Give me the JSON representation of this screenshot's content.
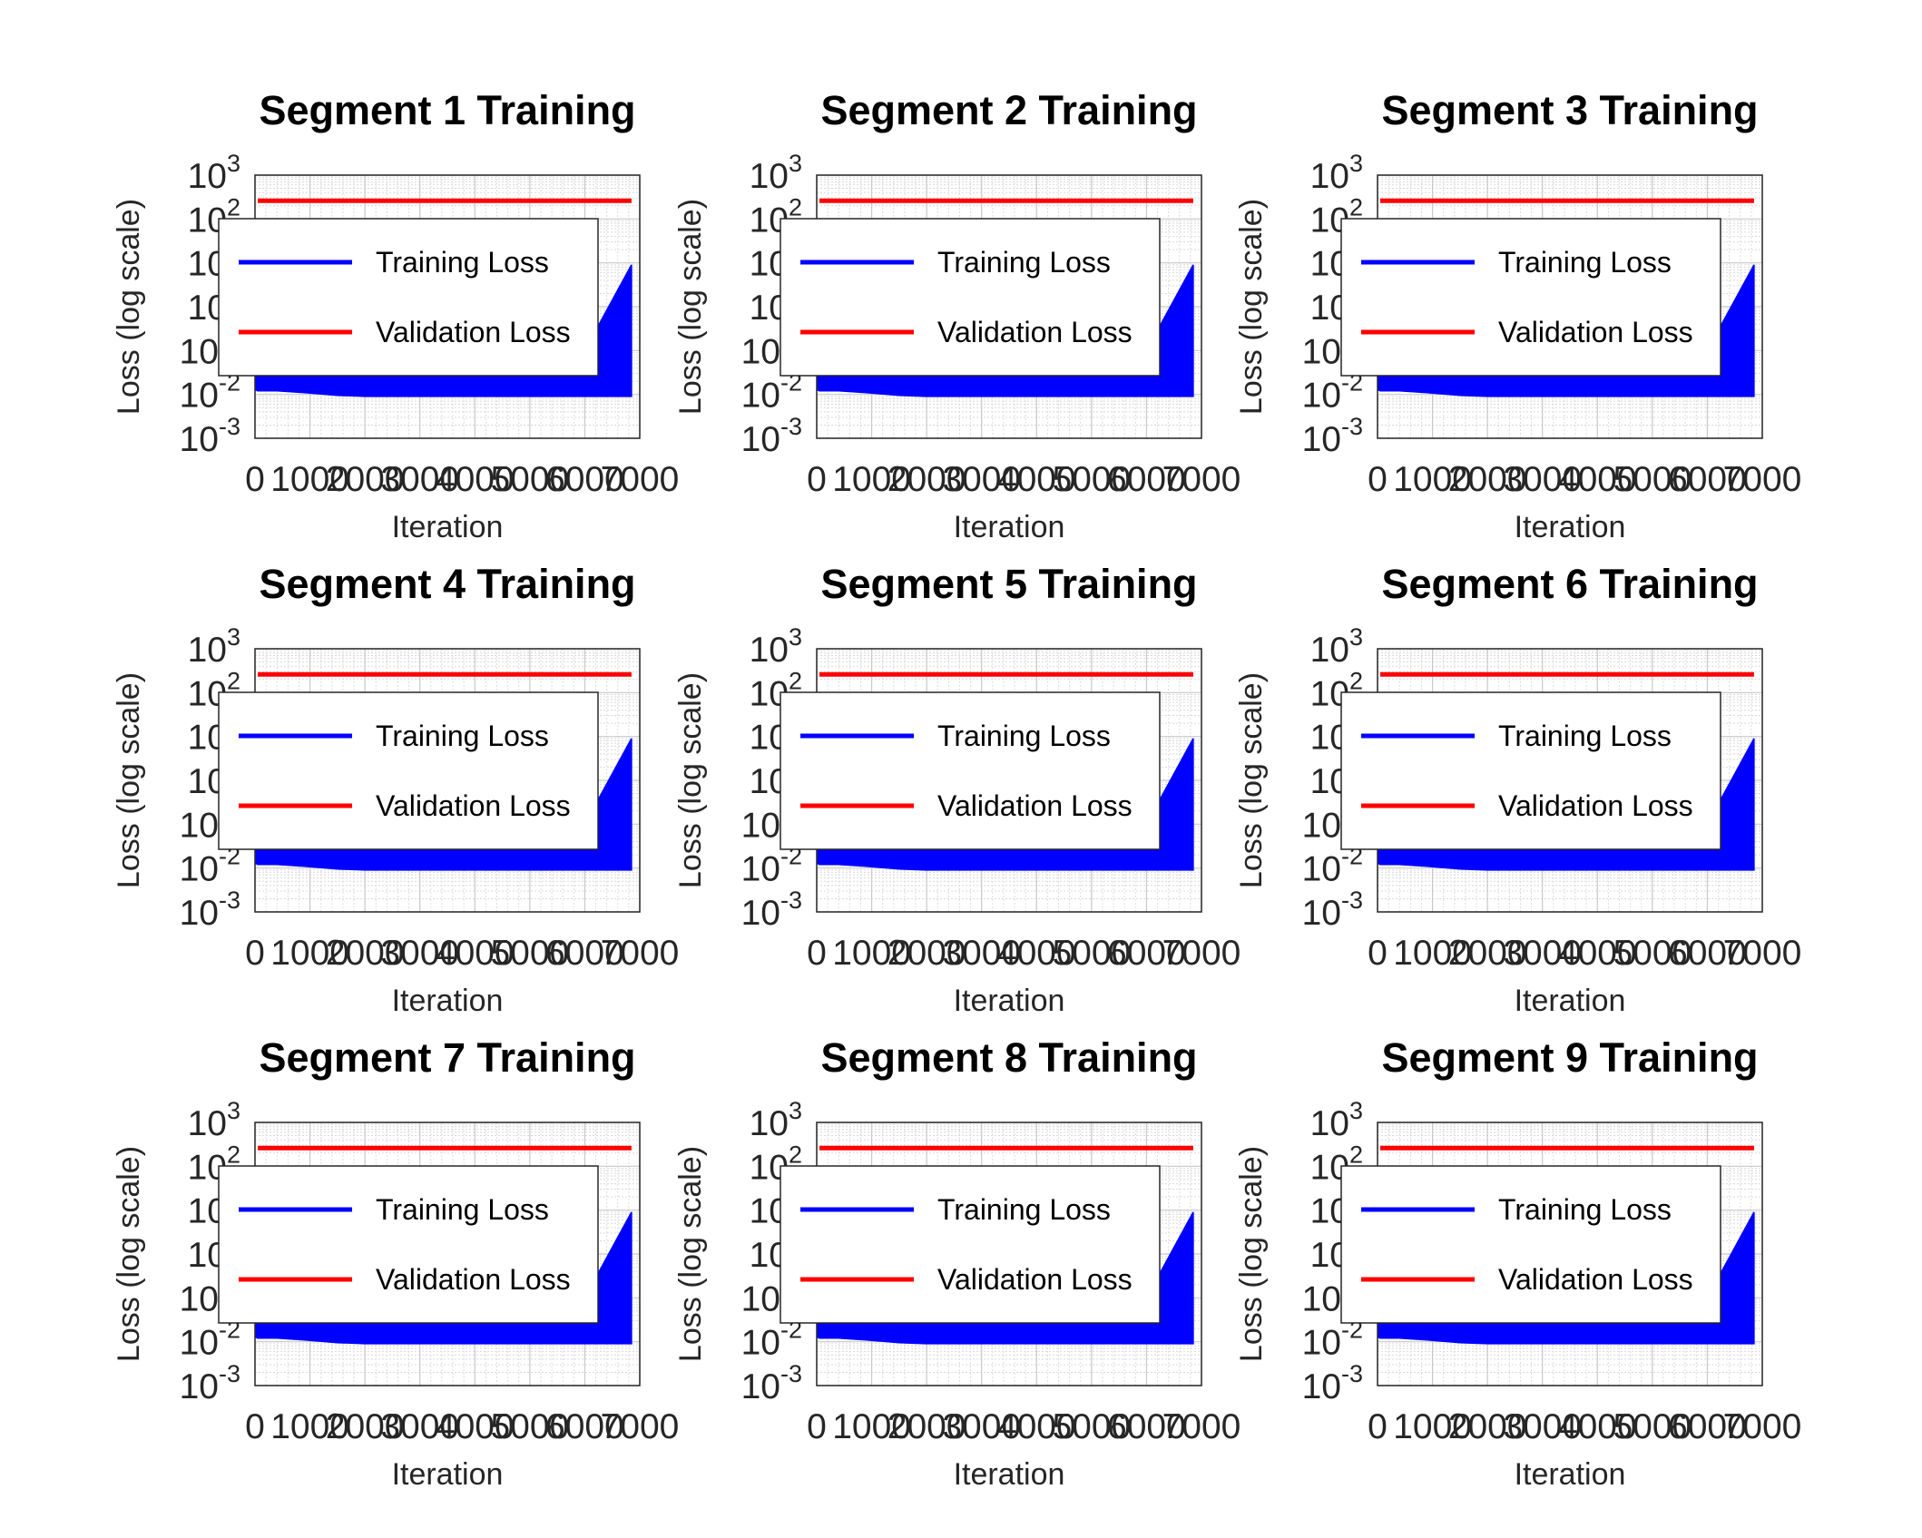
{
  "chart_data": [
    {
      "type": "line",
      "title": "Segment 1 Training",
      "xlabel": "Iteration",
      "ylabel": "Loss (log scale)",
      "yscale": "log",
      "grid": true,
      "legend_location": "inside, upper-left",
      "xlim": [
        0,
        7000
      ],
      "ylim": [
        0.001,
        1000
      ],
      "xticks": [
        "0",
        "1000",
        "2000",
        "3000",
        "4000",
        "5000",
        "6000",
        "7000"
      ],
      "yticks": [
        {
          "base": "10",
          "exp": "-3"
        },
        {
          "base": "10",
          "exp": "-2"
        },
        {
          "base": "10",
          "exp": "-1"
        },
        {
          "base": "10",
          "exp": "0"
        },
        {
          "base": "10",
          "exp": "1"
        },
        {
          "base": "10",
          "exp": "2"
        },
        {
          "base": "10",
          "exp": "3"
        }
      ],
      "series": [
        {
          "name": "Training Loss",
          "color": "#0000ff",
          "x": [
            50,
            400,
            900,
            1500,
            2000,
            3000,
            4000,
            5000,
            6000,
            6850
          ],
          "y_lower": [
            0.012,
            0.012,
            0.011,
            0.0095,
            0.009,
            0.009,
            0.009,
            0.009,
            0.009,
            0.009
          ],
          "y_upper": [
            0.1,
            0.1,
            0.1,
            0.1,
            0.1,
            0.1,
            0.1,
            0.1,
            0.1,
            9.0
          ]
        },
        {
          "name": "Validation Loss",
          "color": "#ff0000",
          "x": [
            50,
            6850
          ],
          "y": [
            260,
            260
          ]
        }
      ]
    },
    {
      "type": "line",
      "title": "Segment 2 Training",
      "xlabel": "Iteration",
      "ylabel": "Loss (log scale)",
      "yscale": "log",
      "grid": true,
      "legend_location": "inside, upper-left",
      "xlim": [
        0,
        7000
      ],
      "ylim": [
        0.001,
        1000
      ],
      "xticks": [
        "0",
        "1000",
        "2000",
        "3000",
        "4000",
        "5000",
        "6000",
        "7000"
      ],
      "yticks": [
        {
          "base": "10",
          "exp": "-3"
        },
        {
          "base": "10",
          "exp": "-2"
        },
        {
          "base": "10",
          "exp": "-1"
        },
        {
          "base": "10",
          "exp": "0"
        },
        {
          "base": "10",
          "exp": "1"
        },
        {
          "base": "10",
          "exp": "2"
        },
        {
          "base": "10",
          "exp": "3"
        }
      ],
      "series": [
        {
          "name": "Training Loss",
          "color": "#0000ff",
          "x": [
            50,
            400,
            900,
            1500,
            2000,
            3000,
            4000,
            5000,
            6000,
            6850
          ],
          "y_lower": [
            0.012,
            0.012,
            0.011,
            0.0095,
            0.009,
            0.009,
            0.009,
            0.009,
            0.009,
            0.009
          ],
          "y_upper": [
            0.1,
            0.1,
            0.1,
            0.1,
            0.1,
            0.1,
            0.1,
            0.1,
            0.1,
            9.0
          ]
        },
        {
          "name": "Validation Loss",
          "color": "#ff0000",
          "x": [
            50,
            6850
          ],
          "y": [
            260,
            260
          ]
        }
      ]
    },
    {
      "type": "line",
      "title": "Segment 3 Training",
      "xlabel": "Iteration",
      "ylabel": "Loss (log scale)",
      "yscale": "log",
      "grid": true,
      "legend_location": "inside, upper-left",
      "xlim": [
        0,
        7000
      ],
      "ylim": [
        0.001,
        1000
      ],
      "xticks": [
        "0",
        "1000",
        "2000",
        "3000",
        "4000",
        "5000",
        "6000",
        "7000"
      ],
      "yticks": [
        {
          "base": "10",
          "exp": "-3"
        },
        {
          "base": "10",
          "exp": "-2"
        },
        {
          "base": "10",
          "exp": "-1"
        },
        {
          "base": "10",
          "exp": "0"
        },
        {
          "base": "10",
          "exp": "1"
        },
        {
          "base": "10",
          "exp": "2"
        },
        {
          "base": "10",
          "exp": "3"
        }
      ],
      "series": [
        {
          "name": "Training Loss",
          "color": "#0000ff",
          "x": [
            50,
            400,
            900,
            1500,
            2000,
            3000,
            4000,
            5000,
            6000,
            6850
          ],
          "y_lower": [
            0.012,
            0.012,
            0.011,
            0.0095,
            0.009,
            0.009,
            0.009,
            0.009,
            0.009,
            0.009
          ],
          "y_upper": [
            0.1,
            0.1,
            0.1,
            0.1,
            0.1,
            0.1,
            0.1,
            0.1,
            0.1,
            9.0
          ]
        },
        {
          "name": "Validation Loss",
          "color": "#ff0000",
          "x": [
            50,
            6850
          ],
          "y": [
            260,
            260
          ]
        }
      ]
    },
    {
      "type": "line",
      "title": "Segment 4 Training",
      "xlabel": "Iteration",
      "ylabel": "Loss (log scale)",
      "yscale": "log",
      "grid": true,
      "legend_location": "inside, upper-left",
      "xlim": [
        0,
        7000
      ],
      "ylim": [
        0.001,
        1000
      ],
      "xticks": [
        "0",
        "1000",
        "2000",
        "3000",
        "4000",
        "5000",
        "6000",
        "7000"
      ],
      "yticks": [
        {
          "base": "10",
          "exp": "-3"
        },
        {
          "base": "10",
          "exp": "-2"
        },
        {
          "base": "10",
          "exp": "-1"
        },
        {
          "base": "10",
          "exp": "0"
        },
        {
          "base": "10",
          "exp": "1"
        },
        {
          "base": "10",
          "exp": "2"
        },
        {
          "base": "10",
          "exp": "3"
        }
      ],
      "series": [
        {
          "name": "Training Loss",
          "color": "#0000ff",
          "x": [
            50,
            400,
            900,
            1500,
            2000,
            3000,
            4000,
            5000,
            6000,
            6850
          ],
          "y_lower": [
            0.012,
            0.012,
            0.011,
            0.0095,
            0.009,
            0.009,
            0.009,
            0.009,
            0.009,
            0.009
          ],
          "y_upper": [
            0.1,
            0.1,
            0.1,
            0.1,
            0.1,
            0.1,
            0.1,
            0.1,
            0.1,
            9.0
          ]
        },
        {
          "name": "Validation Loss",
          "color": "#ff0000",
          "x": [
            50,
            6850
          ],
          "y": [
            260,
            260
          ]
        }
      ]
    },
    {
      "type": "line",
      "title": "Segment 5 Training",
      "xlabel": "Iteration",
      "ylabel": "Loss (log scale)",
      "yscale": "log",
      "grid": true,
      "legend_location": "inside, upper-left",
      "xlim": [
        0,
        7000
      ],
      "ylim": [
        0.001,
        1000
      ],
      "xticks": [
        "0",
        "1000",
        "2000",
        "3000",
        "4000",
        "5000",
        "6000",
        "7000"
      ],
      "yticks": [
        {
          "base": "10",
          "exp": "-3"
        },
        {
          "base": "10",
          "exp": "-2"
        },
        {
          "base": "10",
          "exp": "-1"
        },
        {
          "base": "10",
          "exp": "0"
        },
        {
          "base": "10",
          "exp": "1"
        },
        {
          "base": "10",
          "exp": "2"
        },
        {
          "base": "10",
          "exp": "3"
        }
      ],
      "series": [
        {
          "name": "Training Loss",
          "color": "#0000ff",
          "x": [
            50,
            400,
            900,
            1500,
            2000,
            3000,
            4000,
            5000,
            6000,
            6850
          ],
          "y_lower": [
            0.012,
            0.012,
            0.011,
            0.0095,
            0.009,
            0.009,
            0.009,
            0.009,
            0.009,
            0.009
          ],
          "y_upper": [
            0.1,
            0.1,
            0.1,
            0.1,
            0.1,
            0.1,
            0.1,
            0.1,
            0.1,
            9.0
          ]
        },
        {
          "name": "Validation Loss",
          "color": "#ff0000",
          "x": [
            50,
            6850
          ],
          "y": [
            260,
            260
          ]
        }
      ]
    },
    {
      "type": "line",
      "title": "Segment 6 Training",
      "xlabel": "Iteration",
      "ylabel": "Loss (log scale)",
      "yscale": "log",
      "grid": true,
      "legend_location": "inside, upper-left",
      "xlim": [
        0,
        7000
      ],
      "ylim": [
        0.001,
        1000
      ],
      "xticks": [
        "0",
        "1000",
        "2000",
        "3000",
        "4000",
        "5000",
        "6000",
        "7000"
      ],
      "yticks": [
        {
          "base": "10",
          "exp": "-3"
        },
        {
          "base": "10",
          "exp": "-2"
        },
        {
          "base": "10",
          "exp": "-1"
        },
        {
          "base": "10",
          "exp": "0"
        },
        {
          "base": "10",
          "exp": "1"
        },
        {
          "base": "10",
          "exp": "2"
        },
        {
          "base": "10",
          "exp": "3"
        }
      ],
      "series": [
        {
          "name": "Training Loss",
          "color": "#0000ff",
          "x": [
            50,
            400,
            900,
            1500,
            2000,
            3000,
            4000,
            5000,
            6000,
            6850
          ],
          "y_lower": [
            0.012,
            0.012,
            0.011,
            0.0095,
            0.009,
            0.009,
            0.009,
            0.009,
            0.009,
            0.009
          ],
          "y_upper": [
            0.1,
            0.1,
            0.1,
            0.1,
            0.1,
            0.1,
            0.1,
            0.1,
            0.1,
            9.0
          ]
        },
        {
          "name": "Validation Loss",
          "color": "#ff0000",
          "x": [
            50,
            6850
          ],
          "y": [
            260,
            260
          ]
        }
      ]
    },
    {
      "type": "line",
      "title": "Segment 7 Training",
      "xlabel": "Iteration",
      "ylabel": "Loss (log scale)",
      "yscale": "log",
      "grid": true,
      "legend_location": "inside, upper-left",
      "xlim": [
        0,
        7000
      ],
      "ylim": [
        0.001,
        1000
      ],
      "xticks": [
        "0",
        "1000",
        "2000",
        "3000",
        "4000",
        "5000",
        "6000",
        "7000"
      ],
      "yticks": [
        {
          "base": "10",
          "exp": "-3"
        },
        {
          "base": "10",
          "exp": "-2"
        },
        {
          "base": "10",
          "exp": "-1"
        },
        {
          "base": "10",
          "exp": "0"
        },
        {
          "base": "10",
          "exp": "1"
        },
        {
          "base": "10",
          "exp": "2"
        },
        {
          "base": "10",
          "exp": "3"
        }
      ],
      "series": [
        {
          "name": "Training Loss",
          "color": "#0000ff",
          "x": [
            50,
            400,
            900,
            1500,
            2000,
            3000,
            4000,
            5000,
            6000,
            6850
          ],
          "y_lower": [
            0.012,
            0.012,
            0.011,
            0.0095,
            0.009,
            0.009,
            0.009,
            0.009,
            0.009,
            0.009
          ],
          "y_upper": [
            0.1,
            0.1,
            0.1,
            0.1,
            0.1,
            0.1,
            0.1,
            0.1,
            0.1,
            9.0
          ]
        },
        {
          "name": "Validation Loss",
          "color": "#ff0000",
          "x": [
            50,
            6850
          ],
          "y": [
            260,
            260
          ]
        }
      ]
    },
    {
      "type": "line",
      "title": "Segment 8 Training",
      "xlabel": "Iteration",
      "ylabel": "Loss (log scale)",
      "yscale": "log",
      "grid": true,
      "legend_location": "inside, upper-left",
      "xlim": [
        0,
        7000
      ],
      "ylim": [
        0.001,
        1000
      ],
      "xticks": [
        "0",
        "1000",
        "2000",
        "3000",
        "4000",
        "5000",
        "6000",
        "7000"
      ],
      "yticks": [
        {
          "base": "10",
          "exp": "-3"
        },
        {
          "base": "10",
          "exp": "-2"
        },
        {
          "base": "10",
          "exp": "-1"
        },
        {
          "base": "10",
          "exp": "0"
        },
        {
          "base": "10",
          "exp": "1"
        },
        {
          "base": "10",
          "exp": "2"
        },
        {
          "base": "10",
          "exp": "3"
        }
      ],
      "series": [
        {
          "name": "Training Loss",
          "color": "#0000ff",
          "x": [
            50,
            400,
            900,
            1500,
            2000,
            3000,
            4000,
            5000,
            6000,
            6850
          ],
          "y_lower": [
            0.012,
            0.012,
            0.011,
            0.0095,
            0.009,
            0.009,
            0.009,
            0.009,
            0.009,
            0.009
          ],
          "y_upper": [
            0.1,
            0.1,
            0.1,
            0.1,
            0.1,
            0.1,
            0.1,
            0.1,
            0.1,
            9.0
          ]
        },
        {
          "name": "Validation Loss",
          "color": "#ff0000",
          "x": [
            50,
            6850
          ],
          "y": [
            260,
            260
          ]
        }
      ]
    },
    {
      "type": "line",
      "title": "Segment 9 Training",
      "xlabel": "Iteration",
      "ylabel": "Loss (log scale)",
      "yscale": "log",
      "grid": true,
      "legend_location": "inside, upper-left",
      "xlim": [
        0,
        7000
      ],
      "ylim": [
        0.001,
        1000
      ],
      "xticks": [
        "0",
        "1000",
        "2000",
        "3000",
        "4000",
        "5000",
        "6000",
        "7000"
      ],
      "yticks": [
        {
          "base": "10",
          "exp": "-3"
        },
        {
          "base": "10",
          "exp": "-2"
        },
        {
          "base": "10",
          "exp": "-1"
        },
        {
          "base": "10",
          "exp": "0"
        },
        {
          "base": "10",
          "exp": "1"
        },
        {
          "base": "10",
          "exp": "2"
        },
        {
          "base": "10",
          "exp": "3"
        }
      ],
      "series": [
        {
          "name": "Training Loss",
          "color": "#0000ff",
          "x": [
            50,
            400,
            900,
            1500,
            2000,
            3000,
            4000,
            5000,
            6000,
            6850
          ],
          "y_lower": [
            0.012,
            0.012,
            0.011,
            0.0095,
            0.009,
            0.009,
            0.009,
            0.009,
            0.009,
            0.009
          ],
          "y_upper": [
            0.1,
            0.1,
            0.1,
            0.1,
            0.1,
            0.1,
            0.1,
            0.1,
            0.1,
            9.0
          ]
        },
        {
          "name": "Validation Loss",
          "color": "#ff0000",
          "x": [
            50,
            6850
          ],
          "y": [
            260,
            260
          ]
        }
      ]
    }
  ]
}
